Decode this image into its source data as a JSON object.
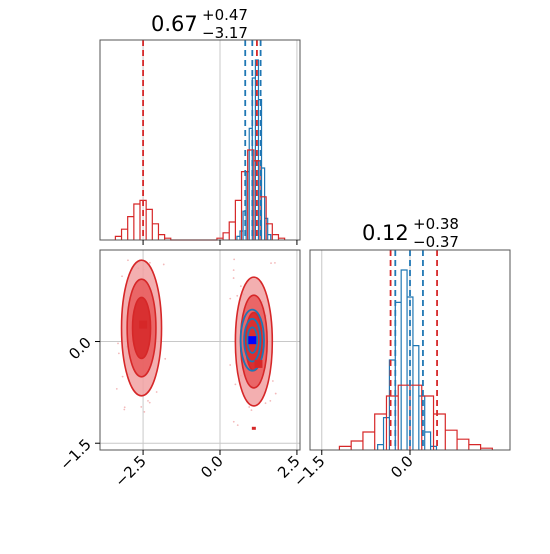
{
  "colors": {
    "blue": "#1f77b4",
    "red": "#d62728",
    "red_fill_light": "#f1a1a2",
    "red_fill_mid": "#e8595a",
    "grid": "#c8c8c8"
  },
  "titles": {
    "p1": {
      "main": "0.67",
      "sup": "+0.47",
      "sub": "−3.17"
    },
    "p2": {
      "main": "0.12",
      "sup": "+0.38",
      "sub": "−0.37"
    }
  },
  "chart_data": [
    {
      "type": "histogram",
      "panel": "top-left",
      "xlim": [
        -3.9,
        2.6
      ],
      "grid": true,
      "x_ticks": [
        -2.5,
        0.0,
        2.5
      ],
      "x_tick_labels": [
        "",
        "",
        ""
      ],
      "series": [
        {
          "name": "",
          "color": "#1f77b4",
          "bins": [
            [
              0.6,
              0.02
            ],
            [
              0.7,
              0.05
            ],
            [
              0.8,
              0.16
            ],
            [
              0.9,
              0.38
            ],
            [
              1.0,
              0.62
            ],
            [
              1.1,
              0.9
            ],
            [
              1.2,
              1.0
            ],
            [
              1.3,
              0.78
            ],
            [
              1.4,
              0.4
            ],
            [
              1.5,
              0.12
            ],
            [
              1.6,
              0.03
            ]
          ]
        },
        {
          "name": "",
          "color": "#d62728",
          "bins": [
            [
              -3.3,
              0.02
            ],
            [
              -3.1,
              0.06
            ],
            [
              -2.9,
              0.13
            ],
            [
              -2.7,
              0.2
            ],
            [
              -2.5,
              0.22
            ],
            [
              -2.3,
              0.17
            ],
            [
              -2.1,
              0.09
            ],
            [
              -1.9,
              0.03
            ],
            [
              -1.7,
              0.01
            ],
            [
              0.0,
              0.01
            ],
            [
              0.2,
              0.04
            ],
            [
              0.4,
              0.1
            ],
            [
              0.6,
              0.22
            ],
            [
              0.8,
              0.38
            ],
            [
              1.0,
              0.5
            ],
            [
              1.2,
              0.44
            ],
            [
              1.4,
              0.24
            ],
            [
              1.6,
              0.09
            ],
            [
              1.8,
              0.03
            ],
            [
              2.0,
              0.01
            ]
          ]
        }
      ],
      "quantile_lines": [
        {
          "color": "#1f77b4",
          "x": [
            0.82,
            1.05,
            1.32
          ]
        },
        {
          "color": "#d62728",
          "x": [
            -2.5,
            1.2
          ]
        }
      ]
    },
    {
      "type": "histogram",
      "panel": "bottom-right",
      "xlim": [
        -1.7,
        1.7
      ],
      "grid": true,
      "x_ticks": [
        -1.5,
        0.0
      ],
      "x_tick_labels": [
        "−1.5",
        "0.0"
      ],
      "series": [
        {
          "name": "",
          "color": "#1f77b4",
          "bins": [
            [
              -0.5,
              0.03
            ],
            [
              -0.4,
              0.18
            ],
            [
              -0.3,
              0.5
            ],
            [
              -0.2,
              0.82
            ],
            [
              -0.1,
              1.0
            ],
            [
              0.0,
              0.85
            ],
            [
              0.1,
              0.58
            ],
            [
              0.2,
              0.3
            ],
            [
              0.3,
              0.1
            ],
            [
              0.4,
              0.02
            ]
          ]
        },
        {
          "name": "",
          "color": "#d62728",
          "bins": [
            [
              -1.1,
              0.02
            ],
            [
              -0.9,
              0.05
            ],
            [
              -0.7,
              0.1
            ],
            [
              -0.5,
              0.2
            ],
            [
              -0.3,
              0.3
            ],
            [
              -0.1,
              0.36
            ],
            [
              0.1,
              0.36
            ],
            [
              0.3,
              0.3
            ],
            [
              0.5,
              0.2
            ],
            [
              0.7,
              0.11
            ],
            [
              0.9,
              0.06
            ],
            [
              1.1,
              0.03
            ],
            [
              1.3,
              0.01
            ]
          ]
        }
      ],
      "quantile_lines": [
        {
          "color": "#1f77b4",
          "x": [
            -0.25,
            0.0,
            0.22
          ]
        },
        {
          "color": "#d62728",
          "x": [
            -0.33,
            0.46
          ]
        }
      ]
    },
    {
      "type": "contour",
      "panel": "bottom-left",
      "xlim": [
        -3.9,
        2.6
      ],
      "ylim": [
        -1.6,
        1.35
      ],
      "grid": true,
      "x_ticks": [
        -2.5,
        0.0,
        2.5
      ],
      "x_tick_labels": [
        "−2.5",
        "0.0",
        "2.5"
      ],
      "y_ticks": [
        -1.5,
        0.0
      ],
      "y_tick_labels": [
        "−1.5",
        "0.0"
      ],
      "series": [
        {
          "name": "",
          "color": "#d62728",
          "modes": [
            {
              "center": [
                -2.55,
                0.2
              ],
              "spread": [
                0.65,
                1.0
              ]
            },
            {
              "center": [
                1.1,
                0.0
              ],
              "spread": [
                0.6,
                0.95
              ]
            }
          ],
          "markers": [
            {
              "x": -2.5,
              "y": 0.25,
              "shape": "square"
            },
            {
              "x": 1.25,
              "y": -0.33,
              "shape": "square"
            }
          ]
        },
        {
          "name": "",
          "color": "#1f77b4",
          "modes": [
            {
              "center": [
                1.05,
                0.02
              ],
              "spread": [
                0.38,
                0.45
              ]
            }
          ],
          "markers": [
            {
              "x": 1.05,
              "y": 0.02,
              "shape": "square",
              "fill": "#0000ff"
            }
          ]
        }
      ]
    }
  ]
}
